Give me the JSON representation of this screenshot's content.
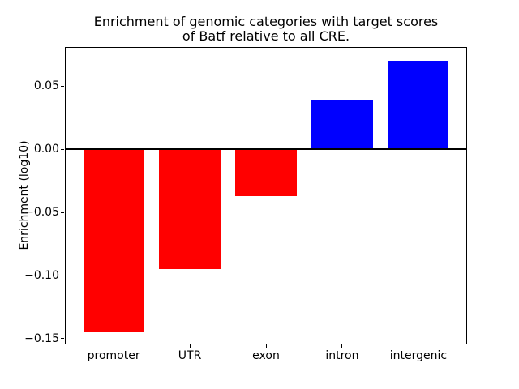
{
  "chart_data": {
    "type": "bar",
    "title": "Enrichment of genomic categories with target scores\nof Batf relative to all CRE.",
    "ylabel": "Enrichment (log10)",
    "categories": [
      "promoter",
      "UTR",
      "exon",
      "intron",
      "intergenic"
    ],
    "values": [
      -0.145,
      -0.095,
      -0.037,
      0.039,
      0.07
    ],
    "bar_colors": [
      "#ff0000",
      "#ff0000",
      "#ff0000",
      "#0000ff",
      "#0000ff"
    ],
    "negative_color": "#ff0000",
    "positive_color": "#0000ff",
    "bar_width": 0.8,
    "xlim": [
      -0.64,
      4.64
    ],
    "ylim": [
      -0.1545,
      0.081
    ],
    "yticks": [
      0.05,
      0.0,
      -0.05,
      -0.1,
      -0.15
    ],
    "ytick_labels": [
      "0.05",
      "0.00",
      "−0.05",
      "−0.10",
      "−0.15"
    ],
    "zero_line": true,
    "grid": false,
    "legend": "none",
    "background_color": "#ffffff",
    "text_color": "#000000"
  }
}
